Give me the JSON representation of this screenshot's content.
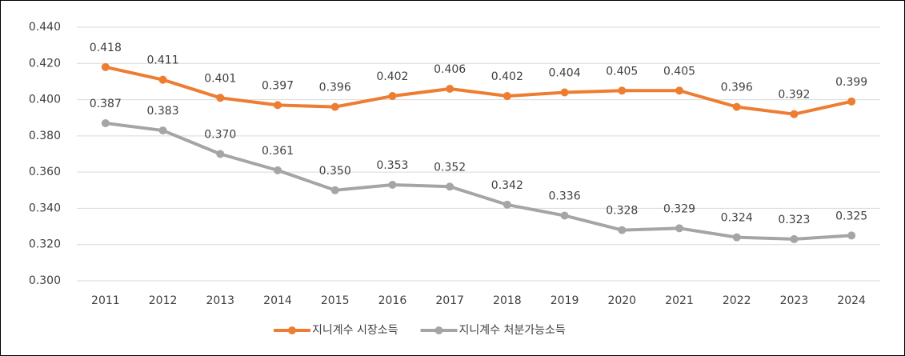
{
  "chart_data": {
    "type": "line",
    "categories": [
      "2011",
      "2012",
      "2013",
      "2014",
      "2015",
      "2016",
      "2017",
      "2018",
      "2019",
      "2020",
      "2021",
      "2022",
      "2023",
      "2024"
    ],
    "series": [
      {
        "name": "지니계수 시장소득",
        "color": "#ed7d31",
        "values": [
          0.418,
          0.411,
          0.401,
          0.397,
          0.396,
          0.402,
          0.406,
          0.402,
          0.404,
          0.405,
          0.405,
          0.396,
          0.392,
          0.399
        ]
      },
      {
        "name": "지니계수 처분가능소득",
        "color": "#a5a5a5",
        "values": [
          0.387,
          0.383,
          0.37,
          0.361,
          0.35,
          0.353,
          0.352,
          0.342,
          0.336,
          0.328,
          0.329,
          0.324,
          0.323,
          0.325
        ],
        "value_labels": [
          "0.387",
          "0.383",
          "0.370",
          "0.361",
          "0.350",
          "0.353",
          "0.352",
          "0.342",
          "0.336",
          "0.328",
          "0.329",
          "0.324",
          "0.323",
          "0.325"
        ]
      }
    ],
    "ylim": [
      0.3,
      0.44
    ],
    "yticks": [
      {
        "value": 0.3,
        "label": "0.300"
      },
      {
        "value": 0.32,
        "label": "0.320"
      },
      {
        "value": 0.34,
        "label": "0.340"
      },
      {
        "value": 0.36,
        "label": "0.360"
      },
      {
        "value": 0.38,
        "label": "0.380"
      },
      {
        "value": 0.4,
        "label": "0.400"
      },
      {
        "value": 0.42,
        "label": "0.420"
      },
      {
        "value": 0.44,
        "label": "0.440"
      }
    ],
    "grid": true,
    "legend": "bottom"
  }
}
